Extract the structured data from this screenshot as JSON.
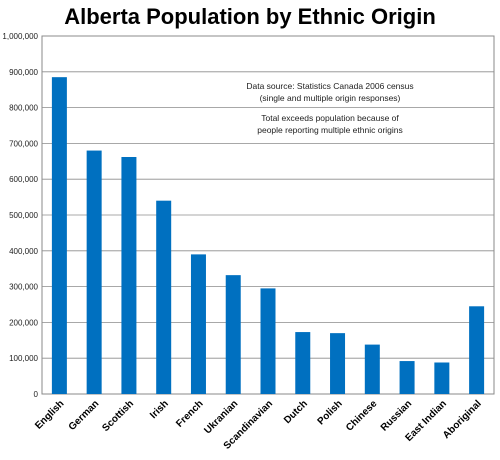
{
  "chart_data": {
    "type": "bar",
    "title": "Alberta Population by Ethnic Origin",
    "categories": [
      "English",
      "German",
      "Scottish",
      "Irish",
      "French",
      "Ukranian",
      "Scandinavian",
      "Dutch",
      "Polish",
      "Chinese",
      "Russian",
      "East Indian",
      "Aboriginal"
    ],
    "values": [
      885000,
      680000,
      662000,
      540000,
      390000,
      332000,
      295000,
      173000,
      170000,
      138000,
      92000,
      88000,
      245000
    ],
    "ylim": [
      0,
      1000000
    ],
    "yticks": [
      "0",
      "100,000",
      "200,000",
      "300,000",
      "400,000",
      "500,000",
      "600,000",
      "700,000",
      "800,000",
      "900,000",
      "1,000,000"
    ],
    "xlabel": "",
    "ylabel": "",
    "grid": "horizontal",
    "bar_color": "#0070C0",
    "annotations": [
      "Data source: Statistics Canada 2006  census",
      "(single and multiple origin responses)",
      "Total exceeds population because of",
      "people reporting multiple ethnic origins"
    ]
  }
}
